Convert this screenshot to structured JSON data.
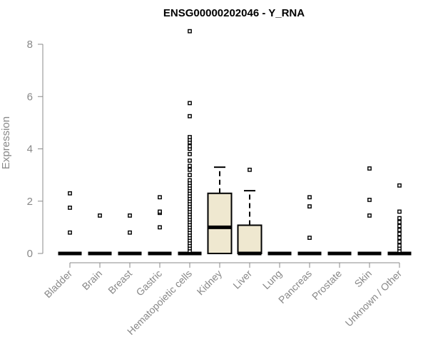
{
  "chart_data": {
    "type": "boxplot",
    "title": "ENSG00000202046 - Y_RNA",
    "ylabel": "Expression",
    "ylim": [
      0,
      8.6
    ],
    "yticks": [
      0,
      2,
      4,
      6,
      8
    ],
    "box_fill": "#efe8d0",
    "categories": [
      "Bladder",
      "Brain",
      "Breast",
      "Gastric",
      "Hematopoietic cells",
      "Kidney",
      "Liver",
      "Lung",
      "Pancreas",
      "Prostate",
      "Skin",
      "Unknown / Other"
    ],
    "boxes": [
      {
        "category": "Bladder",
        "q1": 0,
        "median": 0,
        "q3": 0,
        "whisker_low": 0,
        "whisker_high": 0,
        "outliers": [
          0.8,
          1.75,
          2.3
        ]
      },
      {
        "category": "Brain",
        "q1": 0,
        "median": 0,
        "q3": 0,
        "whisker_low": 0,
        "whisker_high": 0,
        "outliers": [
          1.45
        ]
      },
      {
        "category": "Breast",
        "q1": 0,
        "median": 0,
        "q3": 0,
        "whisker_low": 0,
        "whisker_high": 0,
        "outliers": [
          0.8,
          1.45
        ]
      },
      {
        "category": "Gastric",
        "q1": 0,
        "median": 0,
        "q3": 0,
        "whisker_low": 0,
        "whisker_high": 0,
        "outliers": [
          1.0,
          1.55,
          1.6,
          2.15
        ]
      },
      {
        "category": "Hematopoietic cells",
        "q1": 0,
        "median": 0,
        "q3": 0,
        "whisker_low": 0,
        "whisker_high": 0,
        "outliers": [
          0.1,
          0.2,
          0.3,
          0.4,
          0.5,
          0.6,
          0.7,
          0.8,
          0.9,
          1.0,
          1.1,
          1.2,
          1.3,
          1.4,
          1.5,
          1.6,
          1.7,
          1.8,
          1.9,
          2.0,
          2.1,
          2.2,
          2.3,
          2.4,
          2.5,
          2.6,
          2.7,
          2.8,
          3.0,
          3.2,
          3.35,
          3.55,
          3.8,
          4.0,
          4.1,
          4.25,
          4.35,
          4.45,
          5.25,
          5.75,
          8.5
        ]
      },
      {
        "category": "Kidney",
        "q1": 0,
        "median": 1.0,
        "q3": 2.3,
        "whisker_low": 0,
        "whisker_high": 3.3,
        "outliers": []
      },
      {
        "category": "Liver",
        "q1": 0,
        "median": 0,
        "q3": 1.08,
        "whisker_low": 0,
        "whisker_high": 2.4,
        "outliers": [
          3.2
        ]
      },
      {
        "category": "Lung",
        "q1": 0,
        "median": 0,
        "q3": 0,
        "whisker_low": 0,
        "whisker_high": 0,
        "outliers": []
      },
      {
        "category": "Pancreas",
        "q1": 0,
        "median": 0,
        "q3": 0,
        "whisker_low": 0,
        "whisker_high": 0,
        "outliers": [
          0.6,
          1.8,
          2.15
        ]
      },
      {
        "category": "Prostate",
        "q1": 0,
        "median": 0,
        "q3": 0,
        "whisker_low": 0,
        "whisker_high": 0,
        "outliers": []
      },
      {
        "category": "Skin",
        "q1": 0,
        "median": 0,
        "q3": 0,
        "whisker_low": 0,
        "whisker_high": 0,
        "outliers": [
          1.45,
          2.05,
          3.25
        ]
      },
      {
        "category": "Unknown / Other",
        "q1": 0,
        "median": 0,
        "q3": 0,
        "whisker_low": 0,
        "whisker_high": 0,
        "outliers": [
          0.1,
          0.2,
          0.3,
          0.45,
          0.6,
          0.75,
          0.9,
          1.05,
          1.2,
          1.35,
          1.6,
          2.6
        ]
      }
    ]
  }
}
